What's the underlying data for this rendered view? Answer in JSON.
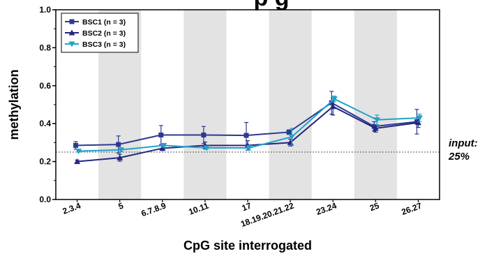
{
  "chart_data": {
    "type": "line",
    "title_fragment": "p         g",
    "xlabel": "CpG site interrogated",
    "ylabel": "methylation",
    "ylim": [
      0,
      1.0
    ],
    "yticks": [
      "0.0",
      "0.2",
      "0.4",
      "0.6",
      "0.8",
      "1.0"
    ],
    "categories": [
      "2.3.4",
      "5",
      "6.7.8.9",
      "10.11",
      "17",
      "18.19.20.21.22",
      "23.24",
      "25",
      "26.27"
    ],
    "shaded_bands": [
      "5",
      "10.11",
      "18.19.20.21.22",
      "25"
    ],
    "reference_line": {
      "value": 0.25,
      "label_line1": "input:",
      "label_line2": "25%"
    },
    "series": [
      {
        "name": "BSC1 (n = 3)",
        "color": "#2b3a8f",
        "marker": "square",
        "values": [
          0.285,
          0.29,
          0.34,
          0.34,
          0.338,
          0.355,
          0.51,
          0.385,
          0.41
        ],
        "err": [
          0.02,
          0.045,
          0.05,
          0.045,
          0.068,
          0.012,
          0.06,
          0.025,
          0.065
        ]
      },
      {
        "name": "BSC2 (n = 3)",
        "color": "#252580",
        "marker": "triangle-up",
        "values": [
          0.2,
          0.22,
          0.27,
          0.285,
          0.285,
          0.3,
          0.49,
          0.375,
          0.405
        ],
        "err": [
          0.008,
          0.018,
          0.012,
          0.018,
          0.025,
          0.018,
          0.045,
          0.02,
          0.025
        ]
      },
      {
        "name": "BSC3 (n = 3)",
        "color": "#1fa3c9",
        "marker": "triangle-down",
        "values": [
          0.255,
          0.262,
          0.285,
          0.272,
          0.272,
          0.33,
          0.53,
          0.42,
          0.43
        ],
        "err": [
          0.005,
          0.01,
          0.01,
          0.008,
          0.012,
          0.045,
          0.015,
          0.025,
          0.02
        ]
      }
    ]
  }
}
